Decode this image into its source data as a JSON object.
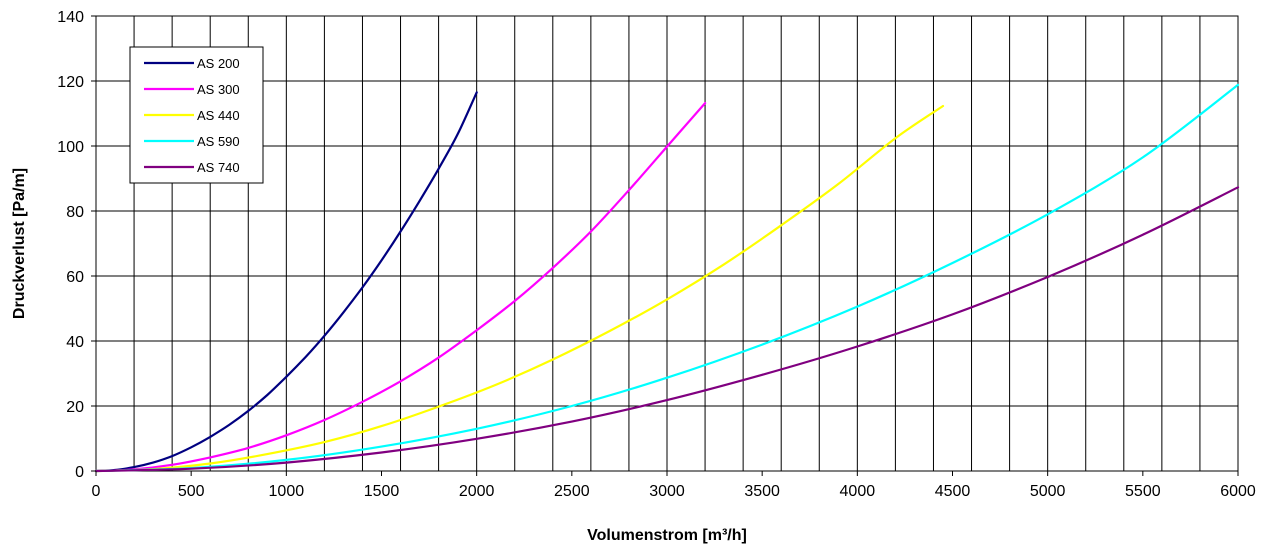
{
  "chart_data": {
    "type": "line",
    "title": "",
    "xlabel": "Volumenstrom [m³/h]",
    "ylabel": "Druckverlust [Pa/m]",
    "xlim": [
      0,
      6000
    ],
    "ylim": [
      0,
      140
    ],
    "xticks": [
      0,
      500,
      1000,
      1500,
      2000,
      2500,
      3000,
      3500,
      4000,
      4500,
      5000,
      5500,
      6000
    ],
    "yticks": [
      0,
      20,
      40,
      60,
      80,
      100,
      120,
      140
    ],
    "xtick_labels": [
      "0",
      "500",
      "1000",
      "1500",
      "2000",
      "2500",
      "3000",
      "3500",
      "4000",
      "4500",
      "5000",
      "5500",
      "6000"
    ],
    "ytick_labels": [
      "0",
      "20",
      "40",
      "60",
      "80",
      "100",
      "120",
      "140"
    ],
    "x_minor_grid_step": 200,
    "grid": true,
    "legend_position": "top-left",
    "series": [
      {
        "name": "AS 200",
        "color": "#000080",
        "x": [
          0,
          100,
          200,
          300,
          400,
          500,
          600,
          700,
          800,
          900,
          1000,
          1100,
          1200,
          1300,
          1400,
          1500,
          1600,
          1700,
          1800,
          1900,
          2000
        ],
        "y": [
          0,
          0.3,
          1.2,
          2.6,
          4.6,
          7.3,
          10.5,
          14.2,
          18.5,
          23.4,
          29,
          35,
          41.6,
          48.8,
          56.5,
          64.8,
          73.7,
          83.1,
          93,
          103.6,
          116.5
        ]
      },
      {
        "name": "AS 300",
        "color": "#ff00ff",
        "x": [
          0,
          200,
          400,
          600,
          800,
          1000,
          1200,
          1400,
          1600,
          1800,
          2000,
          2200,
          2400,
          2600,
          2800,
          3000,
          3200
        ],
        "y": [
          0,
          0.5,
          1.9,
          4.2,
          7.1,
          11,
          15.7,
          21.3,
          27.6,
          34.9,
          43.3,
          52.3,
          62.5,
          73.7,
          86.4,
          99.8,
          113.2
        ]
      },
      {
        "name": "AS 440",
        "color": "#ffff00",
        "x": [
          0,
          300,
          600,
          900,
          1200,
          1500,
          1800,
          2100,
          2400,
          2700,
          3000,
          3300,
          3600,
          3900,
          4200,
          4450
        ],
        "y": [
          0,
          0.6,
          2.3,
          5.2,
          8.9,
          13.8,
          19.8,
          26.5,
          34.3,
          43.1,
          52.8,
          63.6,
          75.6,
          88.3,
          102.4,
          112.3
        ]
      },
      {
        "name": "AS 590",
        "color": "#00ffff",
        "x": [
          0,
          500,
          1000,
          1500,
          2000,
          2500,
          3000,
          3500,
          4000,
          4500,
          5000,
          5500,
          6000
        ],
        "y": [
          0,
          0.9,
          3.4,
          7.5,
          13,
          20,
          28.7,
          38.9,
          50.6,
          64,
          79,
          96.5,
          118.8
        ]
      },
      {
        "name": "AS 740",
        "color": "#800080",
        "x": [
          0,
          500,
          1000,
          1500,
          2000,
          2500,
          3000,
          3500,
          4000,
          4500,
          5000,
          5500,
          6000
        ],
        "y": [
          0,
          0.7,
          2.6,
          5.7,
          9.9,
          15.2,
          21.8,
          29.6,
          38.3,
          48.2,
          59.7,
          72.7,
          87.3
        ]
      }
    ]
  }
}
